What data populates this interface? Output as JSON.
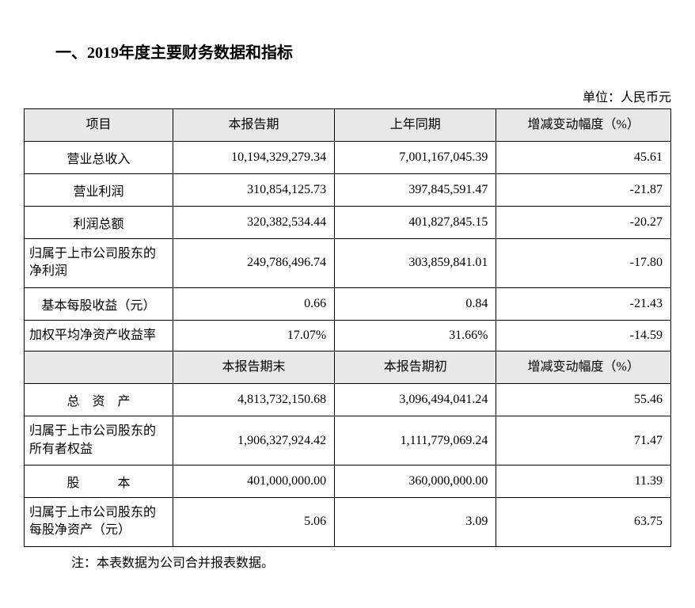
{
  "title": "一、2019年度主要财务数据和指标",
  "unit_label": "单位：人民币元",
  "headers_top": {
    "item": "项目",
    "current": "本报告期",
    "prior": "上年同期",
    "change": "增减变动幅度（%）"
  },
  "headers_mid": {
    "item": "",
    "current": "本报告期末",
    "prior": "本报告期初",
    "change": "增减变动幅度（%）"
  },
  "rows_top": [
    {
      "label": "营业总收入",
      "c": "10,194,329,279.34",
      "p": "7,001,167,045.39",
      "d": "45.61",
      "multi": false
    },
    {
      "label": "营业利润",
      "c": "310,854,125.73",
      "p": "397,845,591.47",
      "d": "-21.87",
      "multi": false
    },
    {
      "label": "利润总额",
      "c": "320,382,534.44",
      "p": "401,827,845.15",
      "d": "-20.27",
      "multi": false
    },
    {
      "label": "归属于上市公司股东的净利润",
      "c": "249,786,496.74",
      "p": "303,859,841.01",
      "d": "-17.80",
      "multi": true
    },
    {
      "label": "基本每股收益（元）",
      "c": "0.66",
      "p": "0.84",
      "d": "-21.43",
      "multi": false
    },
    {
      "label": "加权平均净资产收益率",
      "c": "17.07%",
      "p": "31.66%",
      "d": "-14.59",
      "multi": true
    }
  ],
  "rows_bottom": [
    {
      "label": "总　资　产",
      "c": "4,813,732,150.68",
      "p": "3,096,494,041.24",
      "d": "55.46",
      "multi": false
    },
    {
      "label": "归属于上市公司股东的所有者权益",
      "c": "1,906,327,924.42",
      "p": "1,111,779,069.24",
      "d": "71.47",
      "multi": true
    },
    {
      "label": "股　　　本",
      "c": "401,000,000.00",
      "p": "360,000,000.00",
      "d": "11.39",
      "multi": false
    },
    {
      "label": "归属于上市公司股东的每股净资产（元）",
      "c": "5.06",
      "p": "3.09",
      "d": "63.75",
      "multi": true
    }
  ],
  "footnote": "注：本表数据为公司合并报表数据。",
  "styling": {
    "background_color": "#ffffff",
    "header_bg": "#e8e8e8",
    "border_color": "#000000",
    "text_color": "#000000",
    "title_fontsize": 20,
    "cell_fontsize": 16,
    "font_family": "SimSun"
  }
}
